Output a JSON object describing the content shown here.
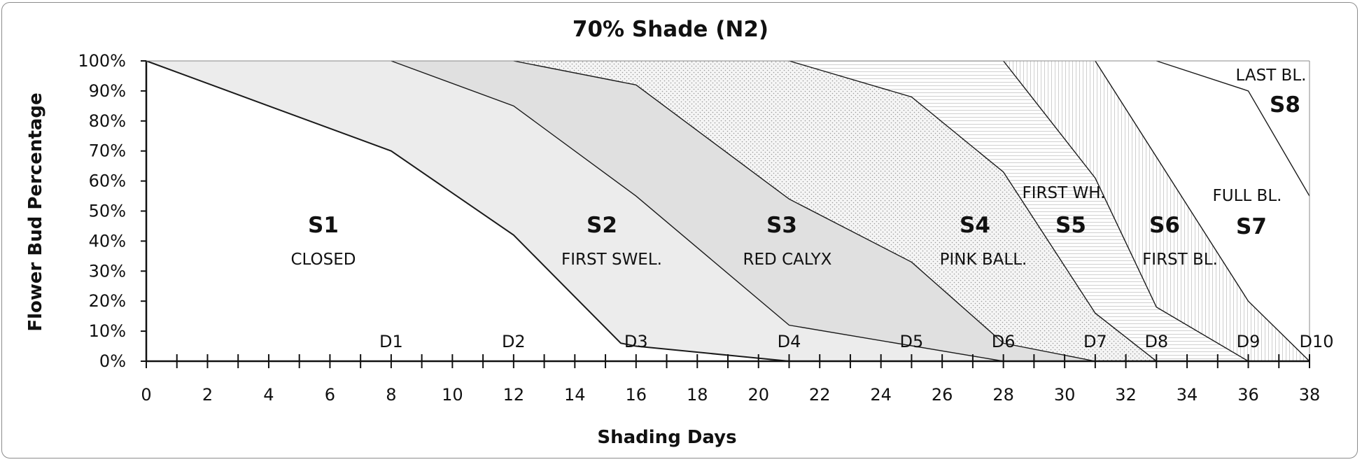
{
  "chart_data": {
    "type": "area",
    "title": "70% Shade (N2)",
    "xlabel": "Shading Days",
    "ylabel": "Flower Bud Percentage",
    "xlim": [
      0,
      38
    ],
    "ylim": [
      0,
      100
    ],
    "x_ticks": [
      "0",
      "2",
      "4",
      "6",
      "8",
      "10",
      "12",
      "14",
      "16",
      "18",
      "20",
      "22",
      "24",
      "26",
      "28",
      "30",
      "32",
      "34",
      "36",
      "38"
    ],
    "y_ticks": [
      "0%",
      "10%",
      "20%",
      "30%",
      "40%",
      "50%",
      "60%",
      "70%",
      "80%",
      "90%",
      "100%"
    ],
    "grid": true,
    "boundaries": [
      {
        "points": [
          [
            0,
            100
          ],
          [
            8,
            70
          ],
          [
            12,
            42
          ],
          [
            15.5,
            6
          ],
          [
            16,
            5
          ],
          [
            21,
            0
          ]
        ]
      },
      {
        "points": [
          [
            8,
            100
          ],
          [
            12,
            85
          ],
          [
            16,
            55
          ],
          [
            21,
            12
          ],
          [
            28,
            0
          ]
        ]
      },
      {
        "points": [
          [
            12,
            100
          ],
          [
            16,
            92
          ],
          [
            21,
            54
          ],
          [
            25,
            33
          ],
          [
            28,
            6
          ],
          [
            31,
            0
          ]
        ]
      },
      {
        "points": [
          [
            21,
            100
          ],
          [
            25,
            88
          ],
          [
            28,
            63
          ],
          [
            31,
            16
          ],
          [
            33,
            0
          ]
        ]
      },
      {
        "points": [
          [
            28,
            100
          ],
          [
            31,
            61
          ],
          [
            33,
            18
          ],
          [
            36,
            0
          ]
        ]
      },
      {
        "points": [
          [
            31,
            100
          ],
          [
            36,
            20
          ],
          [
            38,
            0
          ]
        ]
      },
      {
        "points": [
          [
            33,
            100
          ],
          [
            36,
            90
          ],
          [
            38,
            55
          ]
        ]
      }
    ],
    "stages": [
      {
        "code": "S1",
        "name": "CLOSED"
      },
      {
        "code": "S2",
        "name": "FIRST SWEL."
      },
      {
        "code": "S3",
        "name": "RED CALYX"
      },
      {
        "code": "S4",
        "name": "PINK BALL."
      },
      {
        "code": "S5",
        "name": "FIRST WH."
      },
      {
        "code": "S6",
        "name": "FIRST BL."
      },
      {
        "code": "S7",
        "name": "FULL BL."
      },
      {
        "code": "S8",
        "name": "LAST BL."
      }
    ],
    "day_markers": [
      {
        "label": "D1",
        "x": 8
      },
      {
        "label": "D2",
        "x": 12
      },
      {
        "label": "D3",
        "x": 16
      },
      {
        "label": "D4",
        "x": 21
      },
      {
        "label": "D5",
        "x": 25
      },
      {
        "label": "D6",
        "x": 28
      },
      {
        "label": "D7",
        "x": 31
      },
      {
        "label": "D8",
        "x": 33
      },
      {
        "label": "D9",
        "x": 36
      },
      {
        "label": "D10",
        "x": 38
      }
    ]
  }
}
